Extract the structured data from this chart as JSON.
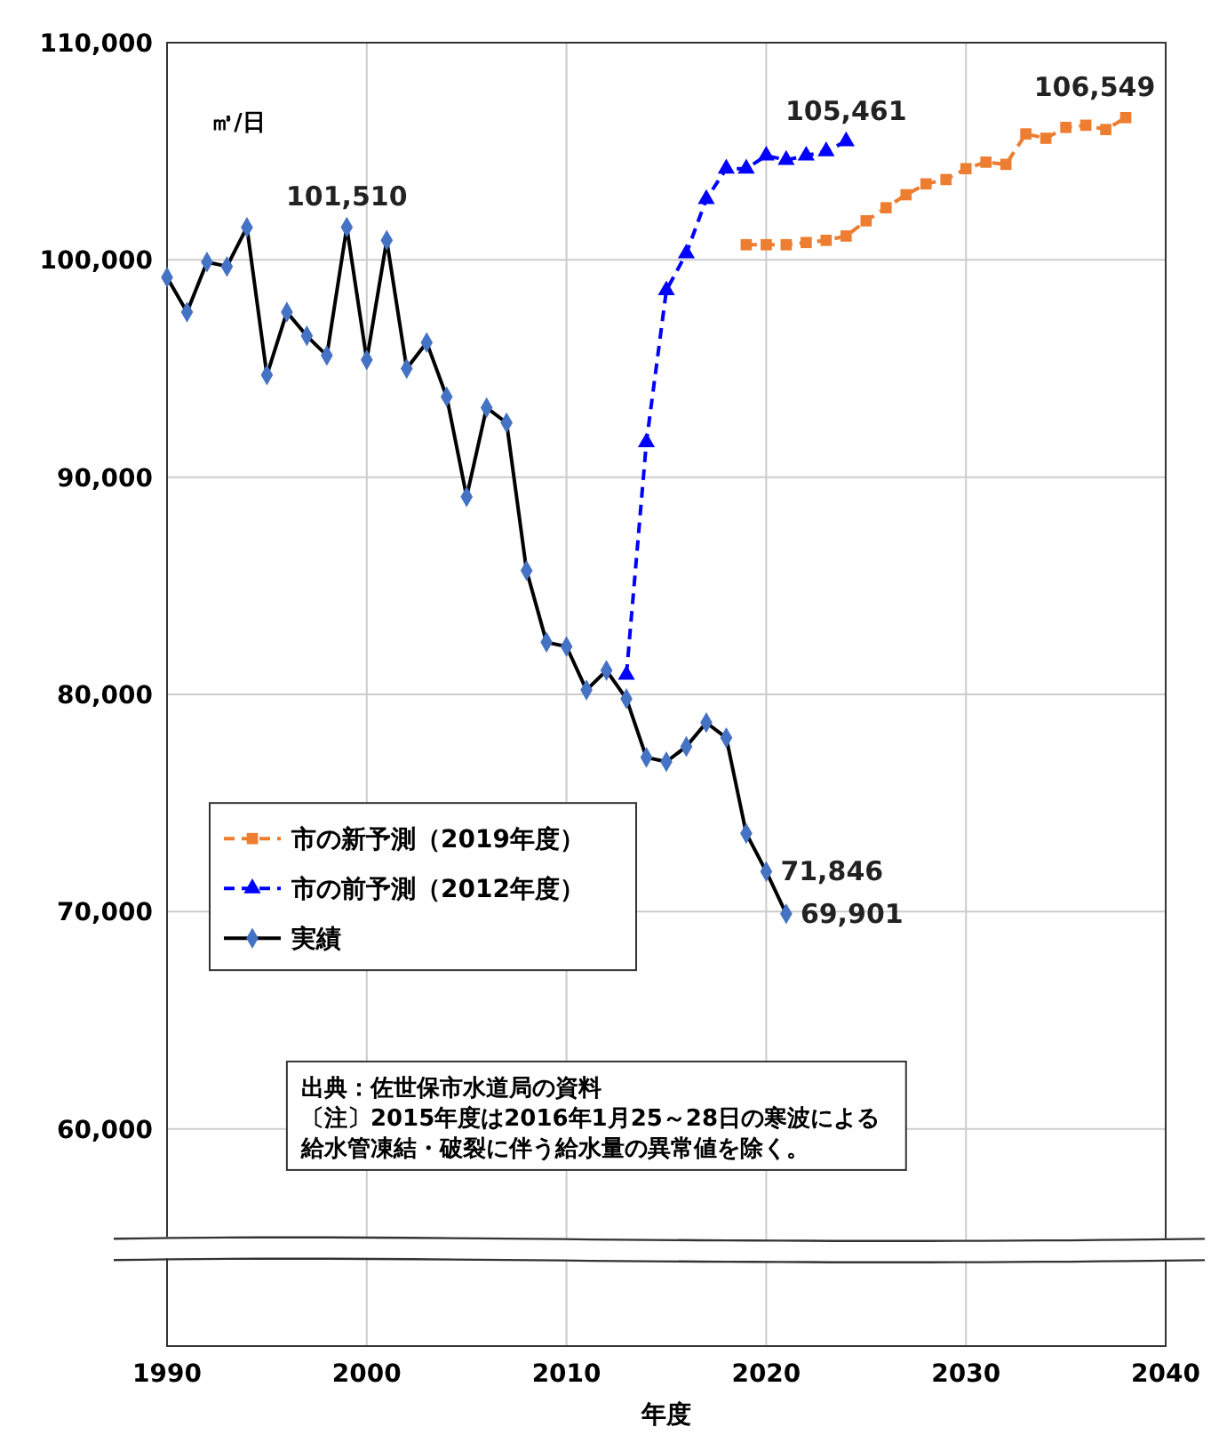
{
  "chart_data": {
    "type": "line",
    "xlabel": "年度",
    "ylabel": "㎥/日",
    "xlim": [
      1990,
      2040
    ],
    "xticks": [
      1990,
      2000,
      2010,
      2020,
      2030,
      2040
    ],
    "ylim": [
      50000,
      110000
    ],
    "yticks": [
      {
        "value": 60000,
        "label": "60,000"
      },
      {
        "value": 70000,
        "label": "70,000"
      },
      {
        "value": 80000,
        "label": "80,000"
      },
      {
        "value": 90000,
        "label": "90,000"
      },
      {
        "value": 100000,
        "label": "100,000"
      },
      {
        "value": 110000,
        "label": "110,000"
      }
    ],
    "grid": true,
    "legend": "left",
    "annotations": [
      "出典：佐世保市水道局の資料",
      "〔注〕2015年度は2016年1月25～28日の寒波による",
      "給水管凍結・破裂に伴う給水量の異常値を除く。"
    ],
    "series": [
      {
        "name": "市の新予測（2019年度）",
        "color": "#ed7d31",
        "marker": "square",
        "line_style": "dashed",
        "x": [
          2019,
          2020,
          2021,
          2022,
          2023,
          2024,
          2025,
          2026,
          2027,
          2028,
          2029,
          2030,
          2031,
          2032,
          2033,
          2034,
          2035,
          2036,
          2037,
          2038
        ],
        "values": [
          100700,
          100700,
          100700,
          100800,
          100900,
          101100,
          101800,
          102400,
          103000,
          103500,
          103700,
          104200,
          104500,
          104400,
          105800,
          105600,
          106100,
          106200,
          106000,
          106549
        ],
        "value_labels": [
          null,
          null,
          null,
          null,
          null,
          null,
          null,
          null,
          null,
          null,
          null,
          null,
          null,
          null,
          null,
          null,
          null,
          null,
          null,
          "106,549"
        ]
      },
      {
        "name": "市の前予測（2012年度）",
        "color": "#0000ff",
        "marker": "triangle",
        "line_style": "dashed",
        "x": [
          2013,
          2014,
          2015,
          2016,
          2017,
          2018,
          2019,
          2020,
          2021,
          2022,
          2023,
          2024
        ],
        "values": [
          80900,
          91600,
          98600,
          100300,
          102800,
          104200,
          104200,
          104800,
          104600,
          104800,
          105000,
          105461
        ],
        "value_labels": [
          null,
          null,
          null,
          null,
          null,
          null,
          null,
          null,
          null,
          null,
          null,
          "105,461"
        ]
      },
      {
        "name": "実績",
        "color": "#4472c4",
        "marker": "diamond",
        "line_style": "solid",
        "x": [
          1990,
          1991,
          1992,
          1993,
          1994,
          1995,
          1996,
          1997,
          1998,
          1999,
          2000,
          2001,
          2002,
          2003,
          2004,
          2005,
          2006,
          2007,
          2008,
          2009,
          2010,
          2011,
          2012,
          2013,
          2014,
          2015,
          2016,
          2017,
          2018,
          2019,
          2020,
          2021
        ],
        "values": [
          99200,
          97600,
          99900,
          99700,
          101500,
          94700,
          97600,
          96500,
          95600,
          101510,
          95400,
          100900,
          95000,
          96200,
          93700,
          89100,
          93200,
          92500,
          85700,
          82400,
          82200,
          80200,
          81100,
          79800,
          77100,
          76900,
          77600,
          78700,
          78000,
          73600,
          71846,
          69901
        ],
        "value_labels": [
          null,
          null,
          null,
          null,
          null,
          null,
          null,
          null,
          null,
          "101,510",
          null,
          null,
          null,
          null,
          null,
          null,
          null,
          null,
          null,
          null,
          null,
          null,
          null,
          null,
          null,
          null,
          null,
          null,
          null,
          null,
          "71,846",
          "69,901"
        ]
      }
    ]
  }
}
